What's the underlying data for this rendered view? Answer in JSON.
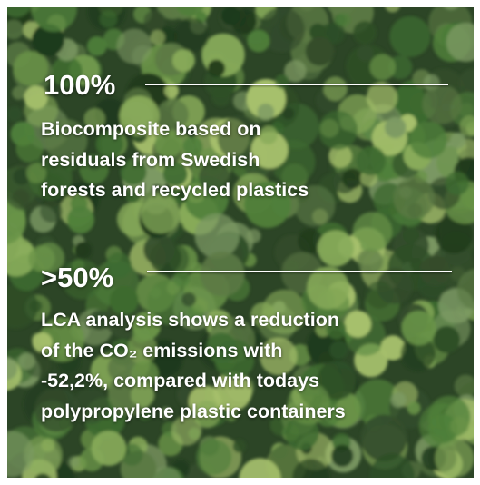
{
  "stats": [
    {
      "value": "100%",
      "description": [
        "Biocomposite based on",
        "residuals from Swedish",
        "forests and recycled plastics"
      ]
    },
    {
      "value": ">50%",
      "description": [
        "LCA analysis shows a reduction",
        "of the CO₂ emissions with",
        "-52,2%, compared with todays",
        "polypropylene plastic containers"
      ]
    }
  ]
}
